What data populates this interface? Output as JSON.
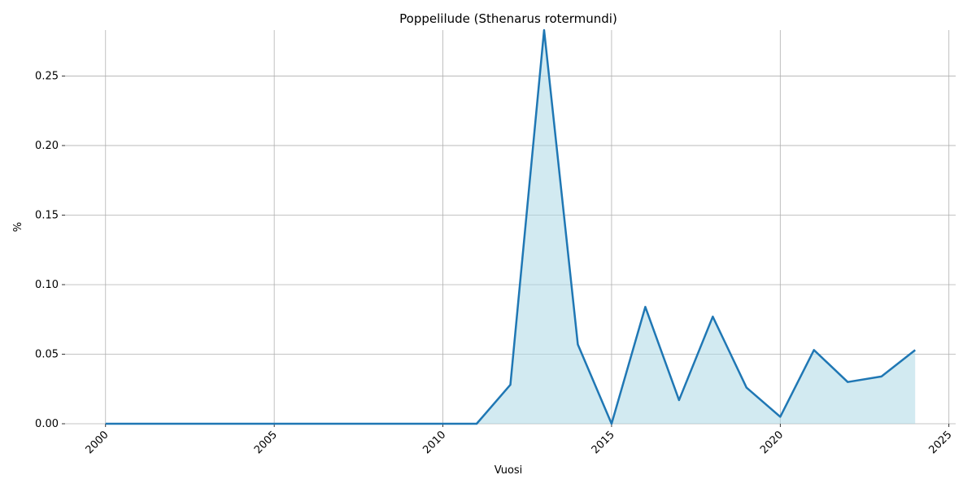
{
  "chart_data": {
    "type": "area-line",
    "title": "Poppelilude (Sthenarus rotermundi)",
    "x_label": "Vuosi",
    "y_label": "%",
    "x": [
      2000,
      2001,
      2002,
      2003,
      2004,
      2005,
      2006,
      2007,
      2008,
      2009,
      2010,
      2011,
      2012,
      2013,
      2014,
      2015,
      2016,
      2017,
      2018,
      2019,
      2020,
      2021,
      2022,
      2023,
      2024
    ],
    "series": [
      {
        "name": "%",
        "color": "#1f77b4",
        "fill": "#add8e6",
        "values": [
          0,
          0,
          0,
          0,
          0,
          0,
          0,
          0,
          0,
          0,
          0,
          0,
          0.028,
          0.283,
          0.057,
          0,
          0.084,
          0.017,
          0.077,
          0.026,
          0.005,
          0.053,
          0.03,
          0.034,
          0.053
        ]
      }
    ],
    "xlim": [
      1998.8,
      2025.2
    ],
    "ylim": [
      0,
      0.283
    ],
    "xticks": [
      2000,
      2005,
      2010,
      2015,
      2020,
      2025
    ],
    "yticks": [
      {
        "value": 0,
        "label": "0.00"
      },
      0.05,
      {
        "value": 0.1,
        "label": "0.10"
      },
      0.15,
      {
        "value": 0.2,
        "label": "0.20"
      },
      0.25
    ],
    "grid": true
  }
}
